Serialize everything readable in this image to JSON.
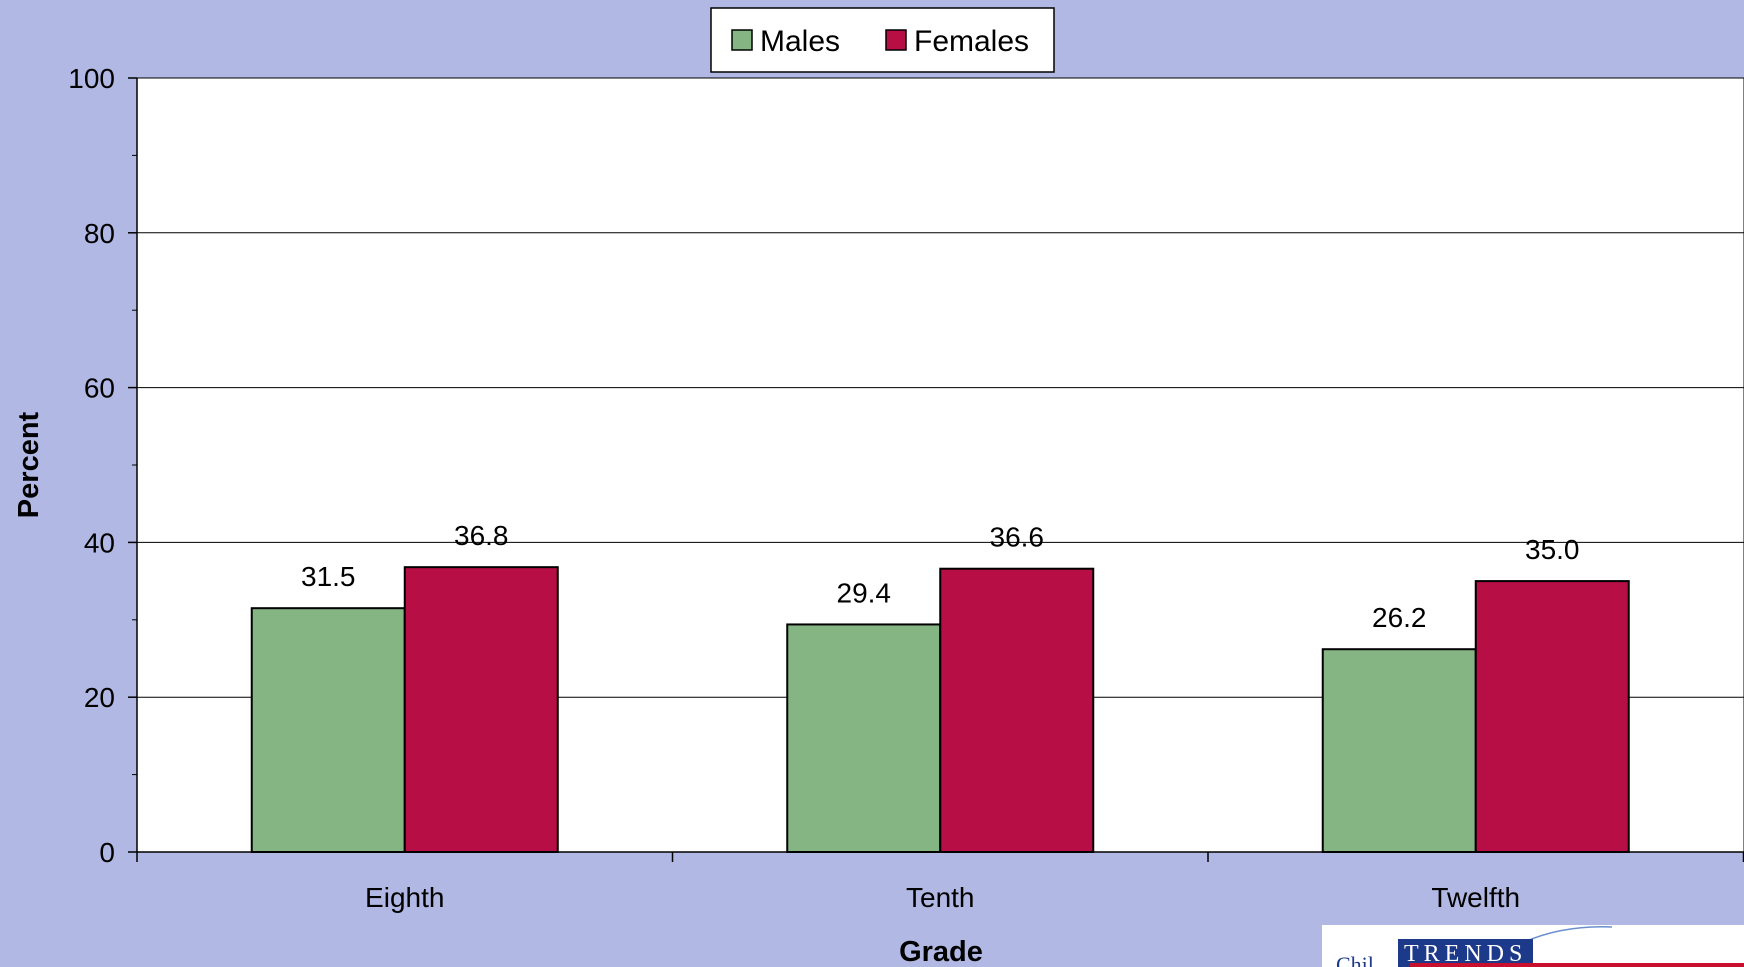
{
  "colors": {
    "background": "#b1b8e3",
    "plot_area": "#ffffff",
    "males": "#84b583",
    "females": "#b80e46"
  },
  "chart_data": {
    "type": "bar",
    "categories": [
      "Eighth",
      "Tenth",
      "Twelfth"
    ],
    "series": [
      {
        "name": "Males",
        "values": [
          31.5,
          29.4,
          26.2
        ],
        "labels": [
          "31.5",
          "29.4",
          "26.2"
        ],
        "color": "#84b583"
      },
      {
        "name": "Females",
        "values": [
          36.8,
          36.6,
          35.0
        ],
        "labels": [
          "36.8",
          "36.6",
          "35.0"
        ],
        "color": "#b80e46"
      }
    ],
    "xlabel": "Grade",
    "ylabel": "Percent",
    "ylim": [
      0,
      100
    ],
    "yticks": [
      0,
      20,
      40,
      60,
      80,
      100
    ],
    "ytick_labels": [
      "0",
      "20",
      "40",
      "60",
      "80",
      "100"
    ],
    "grid": true,
    "legend_position": "top-center"
  },
  "logo": {
    "text": "TRENDS",
    "prefix": "Chil"
  }
}
